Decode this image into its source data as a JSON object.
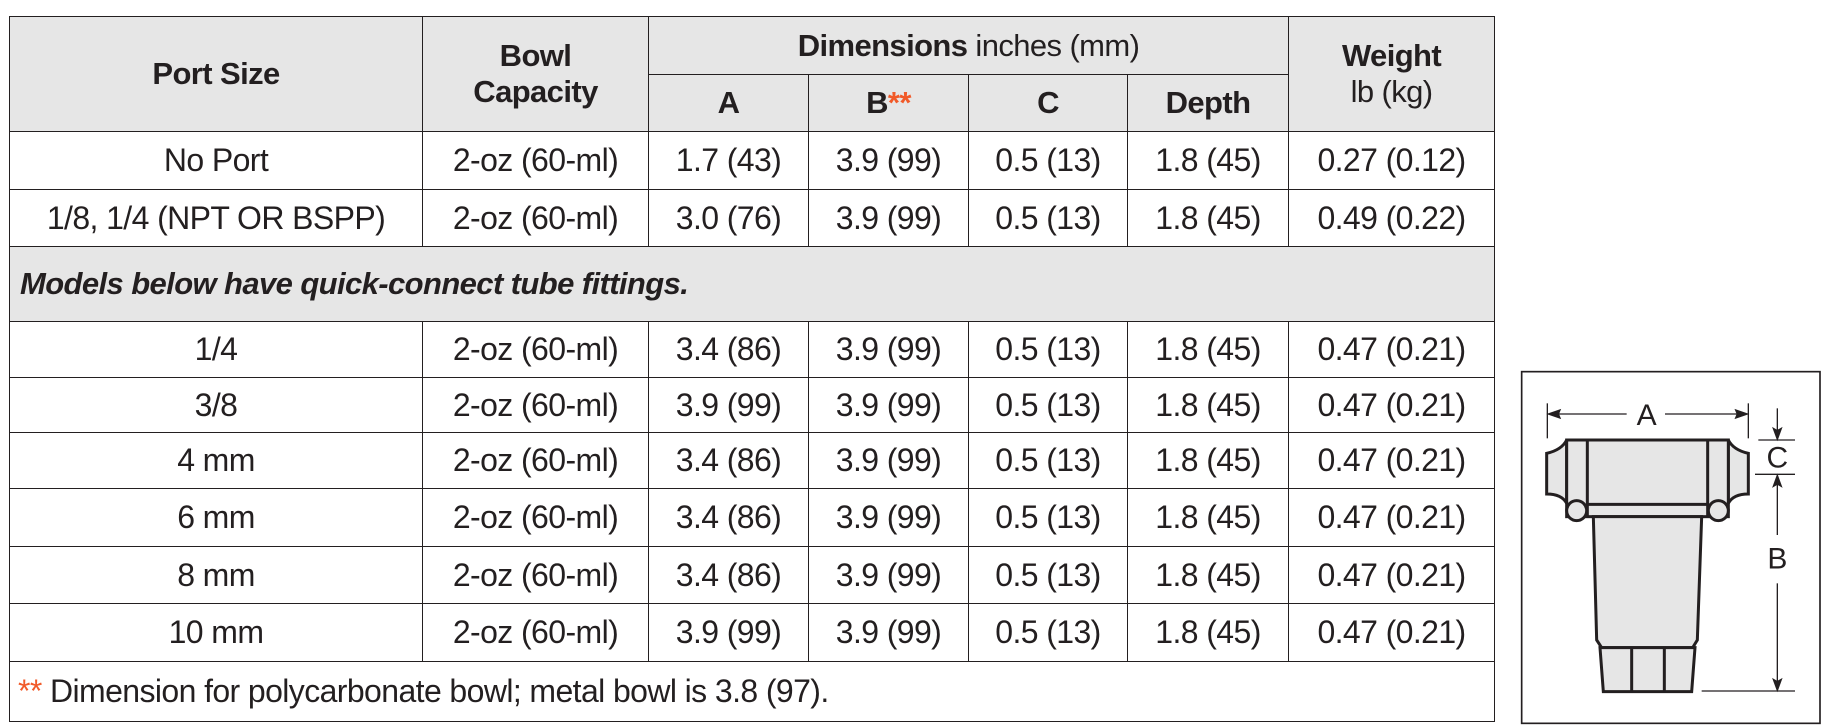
{
  "header": {
    "port_size": "Port Size",
    "bowl_capacity_line1": "Bowl",
    "bowl_capacity_line2": "Capacity",
    "dimensions": "Dimensions",
    "dimensions_unit": "inches (mm)",
    "col_a": "A",
    "col_b": "B",
    "col_b_mark": "**",
    "col_c": "C",
    "col_depth": "Depth",
    "weight": "Weight",
    "weight_unit": "lb (kg)"
  },
  "rows_top": [
    {
      "port": "No Port",
      "bowl": "2-oz (60-ml)",
      "a": "1.7 (43)",
      "b": "3.9 (99)",
      "c": "0.5 (13)",
      "depth": "1.8 (45)",
      "weight": "0.27 (0.12)"
    },
    {
      "port": "1/8, 1/4 (NPT OR BSPP)",
      "bowl": "2-oz (60-ml)",
      "a": "3.0 (76)",
      "b": "3.9 (99)",
      "c": "0.5 (13)",
      "depth": "1.8 (45)",
      "weight": "0.49 (0.22)"
    }
  ],
  "section_note": "Models below have quick-connect tube fittings.",
  "rows_bottom": [
    {
      "port": "1/4",
      "bowl": "2-oz (60-ml)",
      "a": "3.4 (86)",
      "b": "3.9 (99)",
      "c": "0.5 (13)",
      "depth": "1.8 (45)",
      "weight": "0.47 (0.21)"
    },
    {
      "port": "3/8",
      "bowl": "2-oz (60-ml)",
      "a": "3.9 (99)",
      "b": "3.9 (99)",
      "c": "0.5 (13)",
      "depth": "1.8 (45)",
      "weight": "0.47 (0.21)"
    },
    {
      "port": "4 mm",
      "bowl": "2-oz (60-ml)",
      "a": "3.4 (86)",
      "b": "3.9 (99)",
      "c": "0.5 (13)",
      "depth": "1.8 (45)",
      "weight": "0.47 (0.21)"
    },
    {
      "port": "6 mm",
      "bowl": "2-oz (60-ml)",
      "a": "3.4 (86)",
      "b": "3.9 (99)",
      "c": "0.5 (13)",
      "depth": "1.8 (45)",
      "weight": "0.47 (0.21)"
    },
    {
      "port": "8 mm",
      "bowl": "2-oz (60-ml)",
      "a": "3.4 (86)",
      "b": "3.9 (99)",
      "c": "0.5 (13)",
      "depth": "1.8 (45)",
      "weight": "0.47 (0.21)"
    },
    {
      "port": "10 mm",
      "bowl": "2-oz (60-ml)",
      "a": "3.9 (99)",
      "b": "3.9 (99)",
      "c": "0.5 (13)",
      "depth": "1.8 (45)",
      "weight": "0.47 (0.21)"
    }
  ],
  "footnote": {
    "mark": "**",
    "text": " Dimension for polycarbonate bowl; metal bowl is 3.8 (97)."
  },
  "diagram": {
    "label_a": "A",
    "label_b": "B",
    "label_c": "C"
  },
  "colors": {
    "accent": "#f15a29",
    "header_bg": "#e6e6e6"
  }
}
